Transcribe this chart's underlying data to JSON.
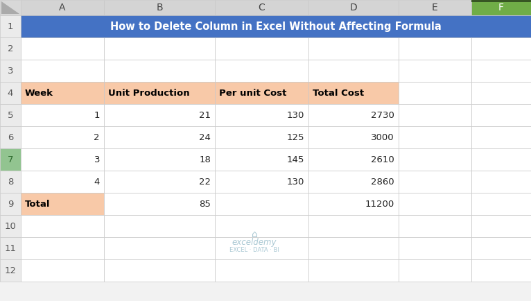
{
  "title": "How to Delete Column in Excel Without Affecting Formula",
  "col_letters": [
    "",
    "A",
    "B",
    "C",
    "D",
    "E",
    "F"
  ],
  "num_rows": 12,
  "num_cols": 6,
  "header_row_bg": "#4472C4",
  "header_col_bg": "#D4D4D4",
  "selected_col_bg": "#70AD47",
  "row7_left_bg": "#8FBC8F",
  "data_header_bg": "#F8C9A8",
  "total_a9_bg": "#F8C9A8",
  "grid_color": "#C8C8C8",
  "title_color": "#FFFFFF",
  "title_fontsize": 10.5,
  "cell_fontsize": 9.5,
  "col_header_fontsize": 10,
  "row_header_fontsize": 9.5,
  "fig_bg": "#F2F2F2",
  "white": "#FFFFFF",
  "table_data": [
    [
      "",
      "",
      "",
      "",
      "",
      ""
    ],
    [
      "",
      "",
      "",
      "",
      "",
      ""
    ],
    [
      "",
      "",
      "",
      "",
      "",
      ""
    ],
    [
      "Week",
      "Unit Production",
      "Per unit Cost",
      "Total Cost",
      "",
      ""
    ],
    [
      "1",
      "21",
      "130",
      "2730",
      "",
      ""
    ],
    [
      "2",
      "24",
      "125",
      "3000",
      "",
      ""
    ],
    [
      "3",
      "18",
      "145",
      "2610",
      "",
      ""
    ],
    [
      "4",
      "22",
      "130",
      "2860",
      "",
      ""
    ],
    [
      "Total",
      "85",
      "",
      "11200",
      "",
      ""
    ],
    [
      "",
      "",
      "",
      "",
      "",
      ""
    ],
    [
      "",
      "",
      "",
      "",
      "",
      ""
    ],
    [
      "",
      "",
      "",
      "",
      "",
      ""
    ]
  ],
  "cell_align": [
    [
      "left",
      "left",
      "left",
      "left",
      "left",
      "left"
    ],
    [
      "left",
      "left",
      "left",
      "left",
      "left",
      "left"
    ],
    [
      "left",
      "left",
      "left",
      "left",
      "left",
      "left"
    ],
    [
      "left",
      "left",
      "left",
      "left",
      "left",
      "left"
    ],
    [
      "right",
      "right",
      "right",
      "right",
      "left",
      "left"
    ],
    [
      "right",
      "right",
      "right",
      "right",
      "left",
      "left"
    ],
    [
      "right",
      "right",
      "right",
      "right",
      "left",
      "left"
    ],
    [
      "right",
      "right",
      "right",
      "right",
      "left",
      "left"
    ],
    [
      "left",
      "right",
      "right",
      "right",
      "left",
      "left"
    ],
    [
      "left",
      "left",
      "left",
      "left",
      "left",
      "left"
    ],
    [
      "left",
      "left",
      "left",
      "left",
      "left",
      "left"
    ],
    [
      "left",
      "left",
      "left",
      "left",
      "left",
      "left"
    ]
  ],
  "cell_bold": [
    [
      false,
      false,
      false,
      false,
      false,
      false
    ],
    [
      false,
      false,
      false,
      false,
      false,
      false
    ],
    [
      false,
      false,
      false,
      false,
      false,
      false
    ],
    [
      true,
      true,
      true,
      true,
      false,
      false
    ],
    [
      false,
      false,
      false,
      false,
      false,
      false
    ],
    [
      false,
      false,
      false,
      false,
      false,
      false
    ],
    [
      false,
      false,
      false,
      false,
      false,
      false
    ],
    [
      false,
      false,
      false,
      false,
      false,
      false
    ],
    [
      true,
      false,
      false,
      false,
      false,
      false
    ],
    [
      false,
      false,
      false,
      false,
      false,
      false
    ],
    [
      false,
      false,
      false,
      false,
      false,
      false
    ],
    [
      false,
      false,
      false,
      false,
      false,
      false
    ]
  ],
  "watermark_text": "exceldemy",
  "watermark_subtext": "EXCEL · DATA · BI",
  "watermark_color": "#9BBFCC"
}
